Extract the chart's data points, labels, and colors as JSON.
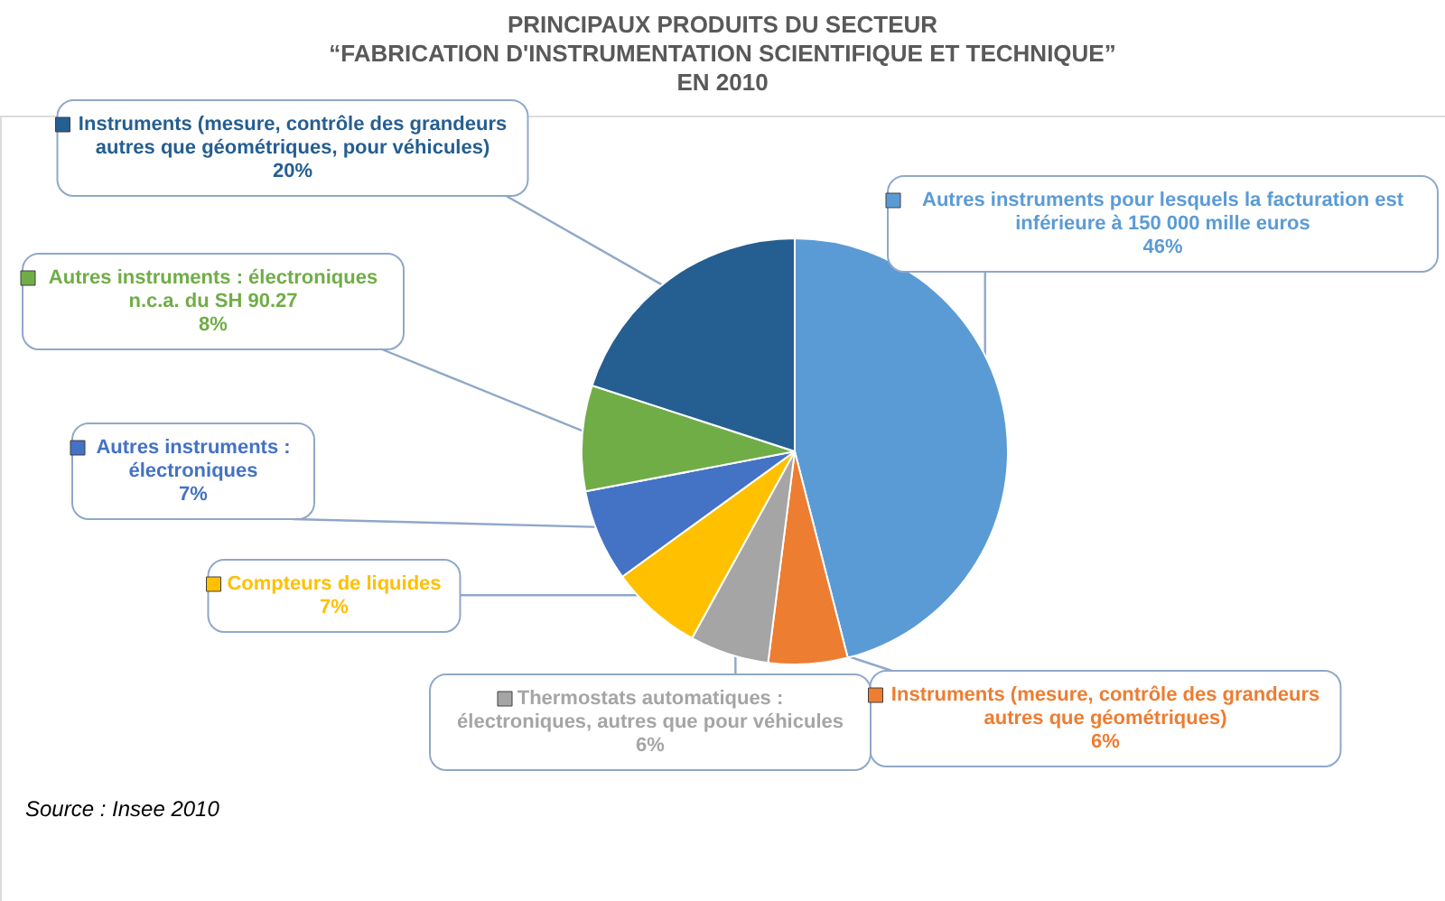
{
  "chart_data": {
    "type": "pie",
    "title": "PRINCIPAUX PRODUITS DU SECTEUR\n“FABRICATION D'INSTRUMENTATION SCIENTIFIQUE ET TECHNIQUE”\nEN 2010",
    "categories": [
      "Autres instruments pour lesquels la facturation est\ninférieure à 150 000 mille euros",
      "Instruments (mesure, contrôle des grandeurs\nautres que géométriques)",
      "Thermostats automatiques :\nélectroniques, autres que pour véhicules",
      "Compteurs de liquides",
      "Autres instruments :\nélectroniques",
      "Autres instruments : électroniques\nn.c.a. du SH 90.27",
      "Instruments (mesure, contrôle des grandeurs\nautres que géométriques, pour véhicules)"
    ],
    "values": [
      46,
      6,
      6,
      7,
      7,
      8,
      20
    ],
    "colors": [
      "#5b9bd5",
      "#ed7d31",
      "#a5a5a5",
      "#ffc000",
      "#4472c4",
      "#70ad47",
      "#255e91"
    ],
    "value_labels": [
      "46%",
      "6%",
      "6%",
      "7%",
      "7%",
      "8%",
      "20%"
    ],
    "legend": "left",
    "annotations": [
      "Source : Insee 2010"
    ]
  }
}
